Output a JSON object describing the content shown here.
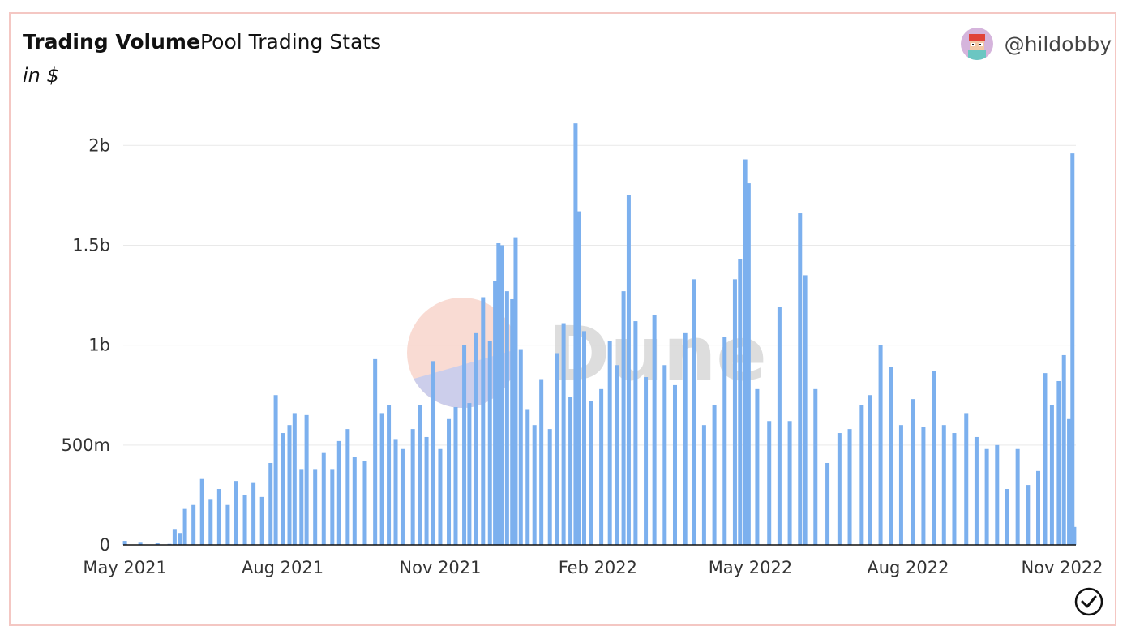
{
  "header": {
    "title": "Trading Volume",
    "subtitle": "Pool Trading Stats",
    "units": "in $",
    "author": "@hildobby"
  },
  "watermark": "Dune",
  "colors": {
    "bar": "#7cb0ee",
    "axis": "#111111",
    "grid": "#e9e9e9",
    "border": "#f4c7c3"
  },
  "icons": {
    "avatar": "avatar-icon",
    "check": "check-circle-icon"
  },
  "chart_data": {
    "type": "bar",
    "x_start": "2021-04-30",
    "x_end": "2022-11-07",
    "x_ticks": [
      "May 2021",
      "Aug 2021",
      "Nov 2021",
      "Feb 2022",
      "May 2022",
      "Aug 2022",
      "Nov 2022"
    ],
    "x_tick_dates": [
      "2021-05-01",
      "2021-08-01",
      "2021-11-01",
      "2022-02-01",
      "2022-05-01",
      "2022-08-01",
      "2022-11-01"
    ],
    "y_ticks": [
      "0",
      "500m",
      "1b",
      "1.5b",
      "2b"
    ],
    "y_tick_values": [
      0,
      500000000,
      1000000000,
      1500000000,
      2000000000
    ],
    "ylim": [
      0,
      2200000000
    ],
    "grid": true,
    "legend": "none",
    "series": [
      {
        "points": [
          [
            "2021-05-01",
            20000000
          ],
          [
            "2021-05-10",
            15000000
          ],
          [
            "2021-05-20",
            10000000
          ],
          [
            "2021-05-27",
            5000000
          ],
          [
            "2021-05-30",
            80000000
          ],
          [
            "2021-06-02",
            60000000
          ],
          [
            "2021-06-05",
            180000000
          ],
          [
            "2021-06-10",
            200000000
          ],
          [
            "2021-06-15",
            330000000
          ],
          [
            "2021-06-20",
            230000000
          ],
          [
            "2021-06-25",
            280000000
          ],
          [
            "2021-06-30",
            200000000
          ],
          [
            "2021-07-05",
            320000000
          ],
          [
            "2021-07-10",
            250000000
          ],
          [
            "2021-07-15",
            310000000
          ],
          [
            "2021-07-20",
            240000000
          ],
          [
            "2021-07-25",
            410000000
          ],
          [
            "2021-07-28",
            750000000
          ],
          [
            "2021-08-01",
            560000000
          ],
          [
            "2021-08-05",
            600000000
          ],
          [
            "2021-08-08",
            660000000
          ],
          [
            "2021-08-12",
            380000000
          ],
          [
            "2021-08-15",
            650000000
          ],
          [
            "2021-08-20",
            380000000
          ],
          [
            "2021-08-25",
            460000000
          ],
          [
            "2021-08-30",
            380000000
          ],
          [
            "2021-09-03",
            520000000
          ],
          [
            "2021-09-08",
            580000000
          ],
          [
            "2021-09-12",
            440000000
          ],
          [
            "2021-09-18",
            420000000
          ],
          [
            "2021-09-24",
            930000000
          ],
          [
            "2021-09-28",
            660000000
          ],
          [
            "2021-10-02",
            700000000
          ],
          [
            "2021-10-06",
            530000000
          ],
          [
            "2021-10-10",
            480000000
          ],
          [
            "2021-10-16",
            580000000
          ],
          [
            "2021-10-20",
            700000000
          ],
          [
            "2021-10-24",
            540000000
          ],
          [
            "2021-10-28",
            920000000
          ],
          [
            "2021-11-01",
            480000000
          ],
          [
            "2021-11-06",
            630000000
          ],
          [
            "2021-11-10",
            690000000
          ],
          [
            "2021-11-15",
            1000000000
          ],
          [
            "2021-11-18",
            710000000
          ],
          [
            "2021-11-22",
            1060000000
          ],
          [
            "2021-11-26",
            1240000000
          ],
          [
            "2021-11-30",
            1020000000
          ],
          [
            "2021-12-03",
            1320000000
          ],
          [
            "2021-12-05",
            1510000000
          ],
          [
            "2021-12-07",
            1500000000
          ],
          [
            "2021-12-10",
            1270000000
          ],
          [
            "2021-12-13",
            1230000000
          ],
          [
            "2021-12-15",
            1540000000
          ],
          [
            "2021-12-18",
            980000000
          ],
          [
            "2021-12-22",
            680000000
          ],
          [
            "2021-12-26",
            600000000
          ],
          [
            "2021-12-30",
            830000000
          ],
          [
            "2022-01-04",
            580000000
          ],
          [
            "2022-01-08",
            960000000
          ],
          [
            "2022-01-12",
            1110000000
          ],
          [
            "2022-01-16",
            740000000
          ],
          [
            "2022-01-19",
            2110000000
          ],
          [
            "2022-01-21",
            1670000000
          ],
          [
            "2022-01-24",
            1070000000
          ],
          [
            "2022-01-28",
            720000000
          ],
          [
            "2022-02-03",
            780000000
          ],
          [
            "2022-02-08",
            1020000000
          ],
          [
            "2022-02-12",
            900000000
          ],
          [
            "2022-02-16",
            1270000000
          ],
          [
            "2022-02-19",
            1750000000
          ],
          [
            "2022-02-23",
            1120000000
          ],
          [
            "2022-03-01",
            840000000
          ],
          [
            "2022-03-06",
            1150000000
          ],
          [
            "2022-03-12",
            900000000
          ],
          [
            "2022-03-18",
            800000000
          ],
          [
            "2022-03-24",
            1060000000
          ],
          [
            "2022-03-29",
            1330000000
          ],
          [
            "2022-04-04",
            600000000
          ],
          [
            "2022-04-10",
            700000000
          ],
          [
            "2022-04-16",
            1040000000
          ],
          [
            "2022-04-22",
            1330000000
          ],
          [
            "2022-04-25",
            1430000000
          ],
          [
            "2022-04-28",
            1930000000
          ],
          [
            "2022-04-30",
            1810000000
          ],
          [
            "2022-05-05",
            780000000
          ],
          [
            "2022-05-12",
            620000000
          ],
          [
            "2022-05-18",
            1190000000
          ],
          [
            "2022-05-24",
            620000000
          ],
          [
            "2022-05-30",
            1660000000
          ],
          [
            "2022-06-02",
            1350000000
          ],
          [
            "2022-06-08",
            780000000
          ],
          [
            "2022-06-15",
            410000000
          ],
          [
            "2022-06-22",
            560000000
          ],
          [
            "2022-06-28",
            580000000
          ],
          [
            "2022-07-05",
            700000000
          ],
          [
            "2022-07-10",
            750000000
          ],
          [
            "2022-07-16",
            1000000000
          ],
          [
            "2022-07-22",
            890000000
          ],
          [
            "2022-07-28",
            600000000
          ],
          [
            "2022-08-04",
            730000000
          ],
          [
            "2022-08-10",
            590000000
          ],
          [
            "2022-08-16",
            870000000
          ],
          [
            "2022-08-22",
            600000000
          ],
          [
            "2022-08-28",
            560000000
          ],
          [
            "2022-09-04",
            660000000
          ],
          [
            "2022-09-10",
            540000000
          ],
          [
            "2022-09-16",
            480000000
          ],
          [
            "2022-09-22",
            500000000
          ],
          [
            "2022-09-28",
            280000000
          ],
          [
            "2022-10-04",
            480000000
          ],
          [
            "2022-10-10",
            300000000
          ],
          [
            "2022-10-16",
            370000000
          ],
          [
            "2022-10-20",
            860000000
          ],
          [
            "2022-10-24",
            700000000
          ],
          [
            "2022-10-28",
            820000000
          ],
          [
            "2022-10-31",
            950000000
          ],
          [
            "2022-11-03",
            630000000
          ],
          [
            "2022-11-05",
            1960000000
          ],
          [
            "2022-11-06",
            90000000
          ]
        ]
      }
    ]
  }
}
